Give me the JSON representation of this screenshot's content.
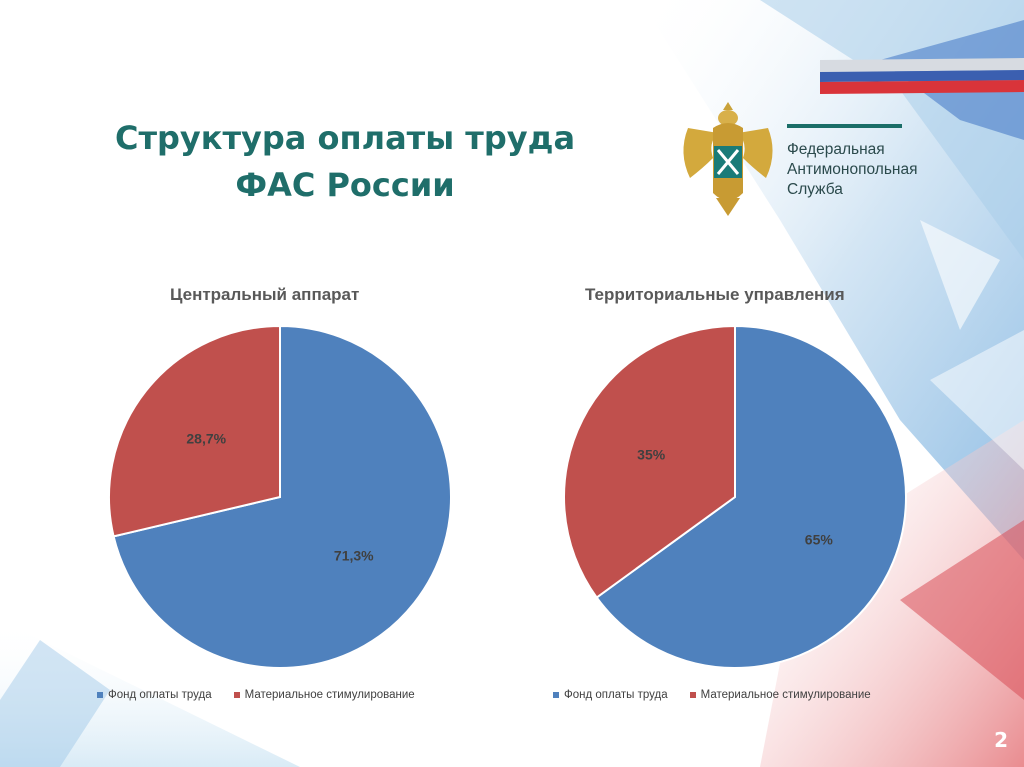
{
  "slide": {
    "title_line1": "Структура оплаты труда",
    "title_line2": "ФАС России",
    "page_number": "2"
  },
  "logo": {
    "line1": "Федеральная",
    "line2": "Антимонопольная",
    "line3": "Служба"
  },
  "colors": {
    "title": "#1f6e6a",
    "series_fund": "#4f81bd",
    "series_stim": "#c0504d"
  },
  "chart_data": [
    {
      "type": "pie",
      "title": "Центральный аппарат",
      "series": [
        {
          "name": "Фонд оплаты труда",
          "value": 71.3,
          "label": "71,3%"
        },
        {
          "name": "Материальное стимулирование",
          "value": 28.7,
          "label": "28,7%"
        }
      ],
      "legend": "bottom"
    },
    {
      "type": "pie",
      "title": "Территориальные управления",
      "series": [
        {
          "name": "Фонд оплаты труда",
          "value": 65,
          "label": "65%"
        },
        {
          "name": "Материальное стимулирование",
          "value": 35,
          "label": "35%"
        }
      ],
      "legend": "bottom"
    }
  ]
}
